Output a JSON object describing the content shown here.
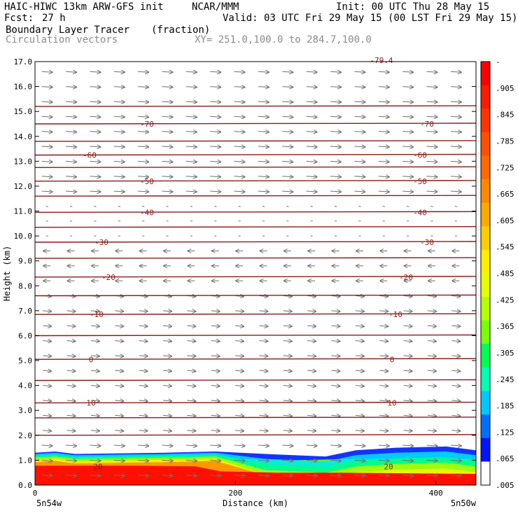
{
  "header": {
    "model_line": "HAIC-HIWC 13km ARW-GFS init",
    "org": "NCAR/MMM",
    "init_line": "Init: 00 UTC Thu 28 May 15",
    "fcst_label": "Fcst:",
    "fcst_value": "27 h",
    "valid_line": "Valid: 03 UTC Fri 29 May 15 (00 LST Fri 29 May 15)",
    "field_name": "Boundary Layer Tracer",
    "field_units": "(fraction)",
    "vector_label": "Circulation vectors",
    "xsection_label": "XY= 251.0,100.0 to 284.7,100.0"
  },
  "colors": {
    "contour": "#8b1a1a",
    "vector": "#707070",
    "text": "#000000",
    "subtext": "#8c8c8c"
  },
  "chart_data": {
    "type": "heatmap",
    "description_units": "tracer fraction, cross-section",
    "xlabel": "Distance (km)",
    "ylabel": "Height (km)",
    "xlim": [
      0,
      440
    ],
    "ylim": [
      0.0,
      17.0
    ],
    "x_ticks": [
      0,
      200,
      400
    ],
    "x_tick_labels": [
      "0",
      "200",
      "400"
    ],
    "x_end_labels": {
      "left": "5n54w",
      "right": "5n50w"
    },
    "y_ticks": [
      0.0,
      1.0,
      2.0,
      3.0,
      4.0,
      5.0,
      6.0,
      7.0,
      8.0,
      9.0,
      10.0,
      11.0,
      12.0,
      13.0,
      14.0,
      15.0,
      16.0,
      17.0
    ],
    "y_tick_labels": [
      "0.0",
      "1.0",
      "2.0",
      "3.0",
      "4.0",
      "5.0",
      "6.0",
      "7.0",
      "8.0",
      "9.0",
      "10.0",
      "11.0",
      "12.0",
      "13.0",
      "14.0",
      "15.0",
      "16.0",
      "17.0"
    ],
    "colorbar": {
      "labels": [
        "-",
        ".905",
        ".845",
        ".785",
        ".725",
        ".665",
        ".605",
        ".545",
        ".485",
        ".425",
        ".365",
        ".305",
        ".245",
        ".185",
        ".125",
        ".065",
        ".005"
      ],
      "colors": [
        "#ff0000",
        "#ff1a00",
        "#ff3300",
        "#ff5000",
        "#ff6a00",
        "#ff8800",
        "#ffa800",
        "#ffcc00",
        "#ffee00",
        "#e6ff00",
        "#b4ff00",
        "#78ff00",
        "#00ff50",
        "#00ffb0",
        "#00c8ff",
        "#006eff",
        "#0014ff",
        "#ffffff"
      ]
    },
    "temperature_contours": [
      {
        "label": "20",
        "height": 0.75
      },
      {
        "label": "10",
        "height": 3.3
      },
      {
        "label": "0",
        "height": 5.05
      },
      {
        "label": "-10",
        "height": 6.85
      },
      {
        "label": "-20",
        "height": 8.35
      },
      {
        "label": "-30",
        "height": 9.75
      },
      {
        "label": "-40",
        "height": 10.95
      },
      {
        "label": "-50",
        "height": 12.2
      },
      {
        "label": "-60",
        "height": 13.25
      },
      {
        "label": "-70",
        "height": 14.5
      }
    ],
    "top_contour_label": "-79.4",
    "contour_heights": [
      2.0,
      2.7,
      3.3,
      4.2,
      5.05,
      6.0,
      6.85,
      7.6,
      8.35,
      9.1,
      9.75,
      10.35,
      10.95,
      11.6,
      12.2,
      12.75,
      13.25,
      13.8,
      14.5,
      15.2
    ],
    "tracer_layers": [
      {
        "level": "0.965",
        "top_profile": [
          [
            0,
            0.78
          ],
          [
            100,
            0.78
          ],
          [
            160,
            0.75
          ],
          [
            185,
            0.55
          ],
          [
            240,
            0.5
          ],
          [
            300,
            0.5
          ],
          [
            440,
            0.45
          ]
        ]
      },
      {
        "level": "0.605",
        "top_profile": [
          [
            0,
            0.95
          ],
          [
            130,
            0.95
          ],
          [
            165,
            0.9
          ],
          [
            200,
            0.7
          ],
          [
            260,
            0.62
          ],
          [
            300,
            0.65
          ],
          [
            440,
            0.6
          ]
        ]
      },
      {
        "level": "0.245",
        "top_profile": [
          [
            0,
            1.1
          ],
          [
            100,
            1.15
          ],
          [
            150,
            1.2
          ],
          [
            200,
            1.05
          ],
          [
            260,
            1.0
          ],
          [
            320,
            1.05
          ],
          [
            440,
            1.05
          ]
        ]
      },
      {
        "level": "0.005",
        "top_profile": [
          [
            0,
            1.3
          ],
          [
            20,
            1.35
          ],
          [
            40,
            1.25
          ],
          [
            130,
            1.3
          ],
          [
            180,
            1.35
          ],
          [
            230,
            1.25
          ],
          [
            290,
            1.15
          ],
          [
            320,
            1.4
          ],
          [
            360,
            1.5
          ],
          [
            410,
            1.55
          ],
          [
            440,
            1.4
          ]
        ]
      }
    ],
    "vector_regime": [
      {
        "from_km": 0.0,
        "to_km": 2.0,
        "direction": "east"
      },
      {
        "from_km": 2.0,
        "to_km": 8.0,
        "direction": "east-weak"
      },
      {
        "from_km": 8.0,
        "to_km": 11.0,
        "direction": "west"
      },
      {
        "from_km": 11.0,
        "to_km": 17.0,
        "direction": "east"
      }
    ]
  }
}
